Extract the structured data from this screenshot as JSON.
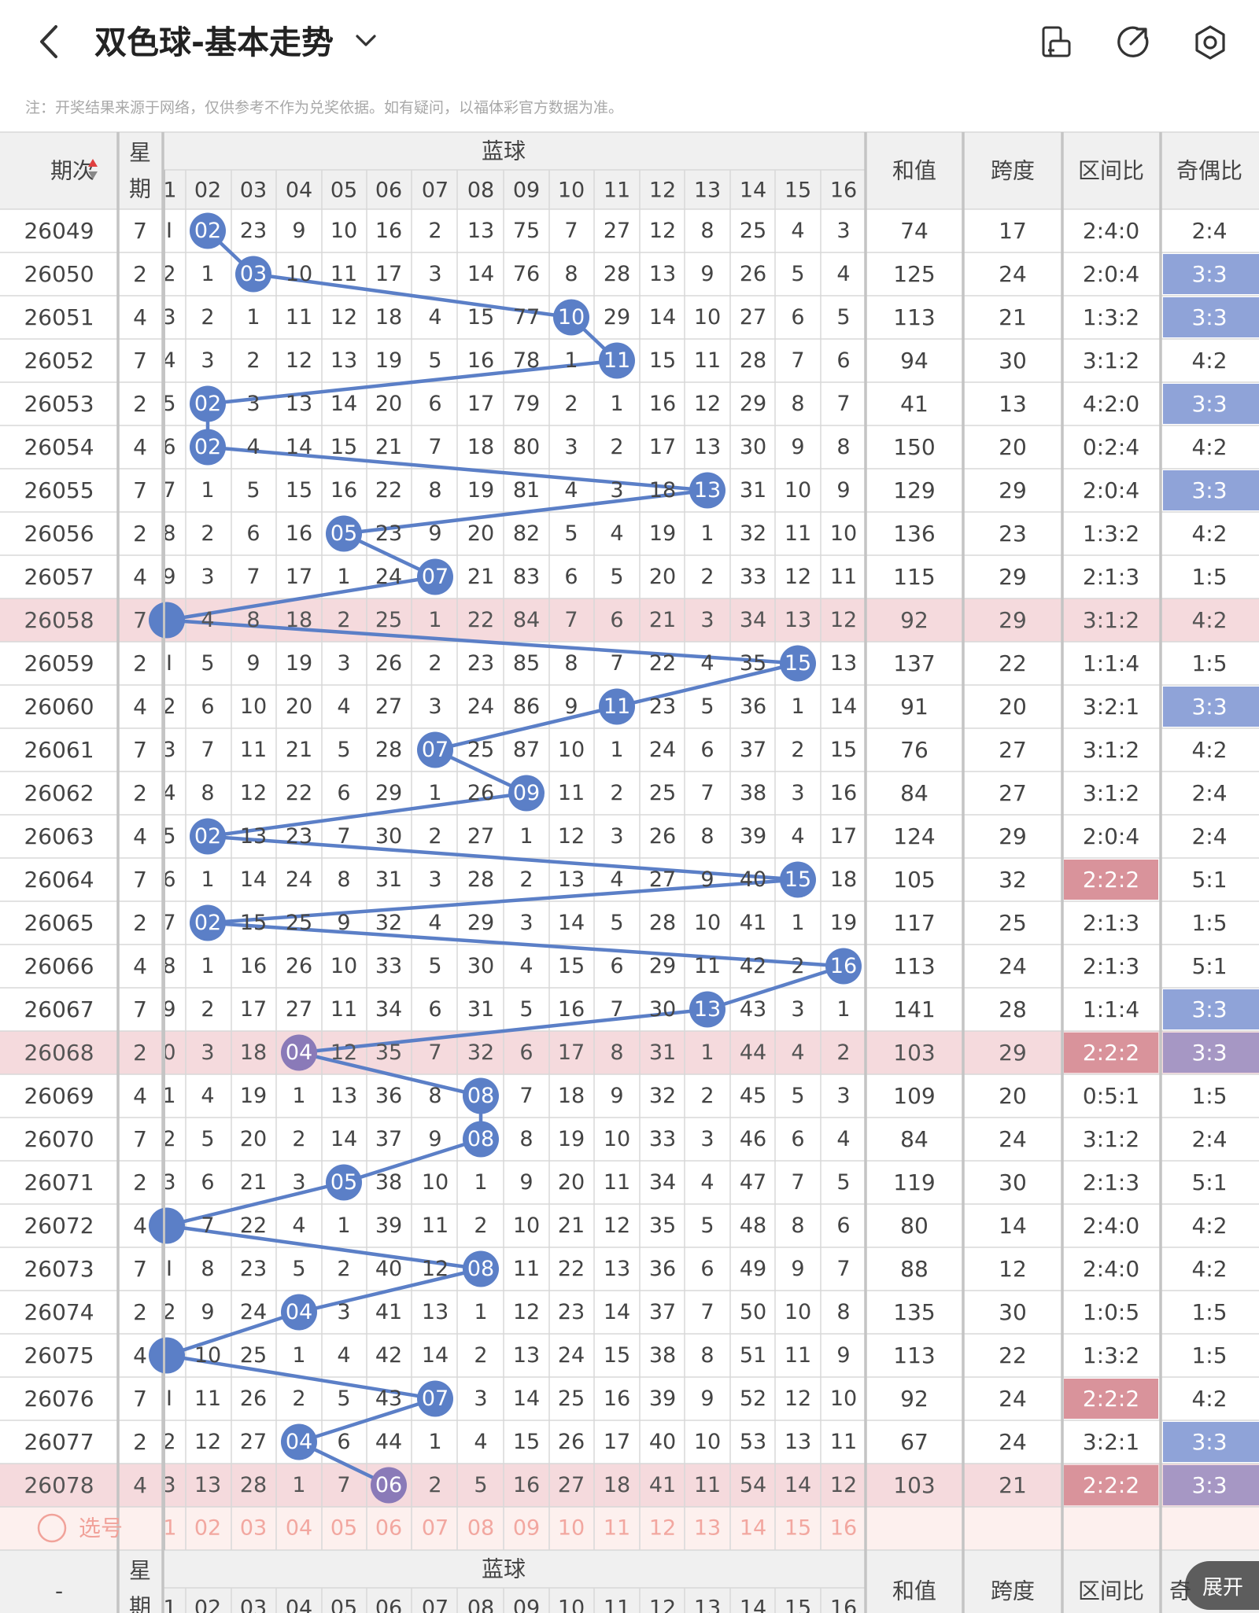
{
  "header": {
    "title": "双色球-基本走势",
    "icons": [
      "back-arrow-icon",
      "chevron-down-icon",
      "phone-rotate-icon",
      "share-icon",
      "settings-hex-icon"
    ]
  },
  "note": "注：开奖结果来源于网络，仅供参考不作为兑奖依据。如有疑问，以福体彩官方数据为准。",
  "colors": {
    "ball": "#5b7fc7",
    "ball_purple": "#8a7ab8",
    "highlight_row": "#f5dadd",
    "red_badge": "#d9939b",
    "blue_badge": "#8fa3d8",
    "purple_badge": "#a697c4",
    "select_bar": "#fdf0ee"
  },
  "table": {
    "headers": {
      "period": "期次",
      "weekday_top": "星",
      "weekday_bottom": "期",
      "blue_group": "蓝球",
      "sum": "和值",
      "span": "跨度",
      "zone_ratio": "区间比",
      "odd_even": "奇偶比"
    },
    "blue_numbers": [
      "1",
      "02",
      "03",
      "04",
      "05",
      "06",
      "07",
      "08",
      "09",
      "10",
      "11",
      "12",
      "13",
      "14",
      "15",
      "16"
    ],
    "rows": [
      {
        "period": "26049",
        "week": "7",
        "c1": "I",
        "cells": [
          "02",
          "23",
          "9",
          "10",
          "16",
          "2",
          "13",
          "75",
          "7",
          "27",
          "12",
          "8",
          "25",
          "4",
          "3"
        ],
        "ball": 2,
        "sum": "74",
        "span": "17",
        "zone": "2:4:0",
        "oe": "2:4"
      },
      {
        "period": "26050",
        "week": "2",
        "c1": "2",
        "cells": [
          "1",
          "03",
          "10",
          "11",
          "17",
          "3",
          "14",
          "76",
          "8",
          "28",
          "13",
          "9",
          "26",
          "5",
          "4"
        ],
        "ball": 3,
        "sum": "125",
        "span": "24",
        "zone": "2:0:4",
        "oe": "3:3",
        "oe_mark": "blue"
      },
      {
        "period": "26051",
        "week": "4",
        "c1": "3",
        "cells": [
          "2",
          "1",
          "11",
          "12",
          "18",
          "4",
          "15",
          "77",
          "10",
          "29",
          "14",
          "10",
          "27",
          "6",
          "5"
        ],
        "ball": 10,
        "sum": "113",
        "span": "21",
        "zone": "1:3:2",
        "oe": "3:3",
        "oe_mark": "blue"
      },
      {
        "period": "26052",
        "week": "7",
        "c1": "4",
        "cells": [
          "3",
          "2",
          "12",
          "13",
          "19",
          "5",
          "16",
          "78",
          "1",
          "11",
          "15",
          "11",
          "28",
          "7",
          "6"
        ],
        "ball": 11,
        "sum": "94",
        "span": "30",
        "zone": "3:1:2",
        "oe": "4:2"
      },
      {
        "period": "26053",
        "week": "2",
        "c1": "5",
        "cells": [
          "02",
          "3",
          "13",
          "14",
          "20",
          "6",
          "17",
          "79",
          "2",
          "1",
          "16",
          "12",
          "29",
          "8",
          "7"
        ],
        "ball": 2,
        "sum": "41",
        "span": "13",
        "zone": "4:2:0",
        "oe": "3:3",
        "oe_mark": "blue"
      },
      {
        "period": "26054",
        "week": "4",
        "c1": "6",
        "cells": [
          "02",
          "4",
          "14",
          "15",
          "21",
          "7",
          "18",
          "80",
          "3",
          "2",
          "17",
          "13",
          "30",
          "9",
          "8"
        ],
        "ball": 2,
        "sum": "150",
        "span": "20",
        "zone": "0:2:4",
        "oe": "4:2"
      },
      {
        "period": "26055",
        "week": "7",
        "c1": "7",
        "cells": [
          "1",
          "5",
          "15",
          "16",
          "22",
          "8",
          "19",
          "81",
          "4",
          "3",
          "18",
          "13",
          "31",
          "10",
          "9"
        ],
        "ball": 13,
        "sum": "129",
        "span": "29",
        "zone": "2:0:4",
        "oe": "3:3",
        "oe_mark": "blue"
      },
      {
        "period": "26056",
        "week": "2",
        "c1": "8",
        "cells": [
          "2",
          "6",
          "16",
          "05",
          "23",
          "9",
          "20",
          "82",
          "5",
          "4",
          "19",
          "1",
          "32",
          "11",
          "10"
        ],
        "ball": 5,
        "sum": "136",
        "span": "23",
        "zone": "1:3:2",
        "oe": "4:2"
      },
      {
        "period": "26057",
        "week": "4",
        "c1": "9",
        "cells": [
          "3",
          "7",
          "17",
          "1",
          "24",
          "07",
          "21",
          "83",
          "6",
          "5",
          "20",
          "2",
          "33",
          "12",
          "11"
        ],
        "ball": 7,
        "sum": "115",
        "span": "29",
        "zone": "2:1:3",
        "oe": "1:5"
      },
      {
        "period": "26058",
        "week": "7",
        "c1": "1",
        "cells": [
          "4",
          "8",
          "18",
          "2",
          "25",
          "1",
          "22",
          "84",
          "7",
          "6",
          "21",
          "3",
          "34",
          "13",
          "12"
        ],
        "ball": 1,
        "sum": "92",
        "span": "29",
        "zone": "3:1:2",
        "oe": "4:2",
        "hl": true
      },
      {
        "period": "26059",
        "week": "2",
        "c1": "I",
        "cells": [
          "5",
          "9",
          "19",
          "3",
          "26",
          "2",
          "23",
          "85",
          "8",
          "7",
          "22",
          "4",
          "35",
          "15",
          "13"
        ],
        "ball": 15,
        "sum": "137",
        "span": "22",
        "zone": "1:1:4",
        "oe": "1:5"
      },
      {
        "period": "26060",
        "week": "4",
        "c1": "2",
        "cells": [
          "6",
          "10",
          "20",
          "4",
          "27",
          "3",
          "24",
          "86",
          "9",
          "11",
          "23",
          "5",
          "36",
          "1",
          "14"
        ],
        "ball": 11,
        "sum": "91",
        "span": "20",
        "zone": "3:2:1",
        "oe": "3:3",
        "oe_mark": "blue"
      },
      {
        "period": "26061",
        "week": "7",
        "c1": "3",
        "cells": [
          "7",
          "11",
          "21",
          "5",
          "28",
          "07",
          "25",
          "87",
          "10",
          "1",
          "24",
          "6",
          "37",
          "2",
          "15"
        ],
        "ball": 7,
        "sum": "76",
        "span": "27",
        "zone": "3:1:2",
        "oe": "4:2"
      },
      {
        "period": "26062",
        "week": "2",
        "c1": "4",
        "cells": [
          "8",
          "12",
          "22",
          "6",
          "29",
          "1",
          "26",
          "09",
          "11",
          "2",
          "25",
          "7",
          "38",
          "3",
          "16"
        ],
        "ball": 9,
        "sum": "84",
        "span": "27",
        "zone": "3:1:2",
        "oe": "2:4"
      },
      {
        "period": "26063",
        "week": "4",
        "c1": "5",
        "cells": [
          "02",
          "13",
          "23",
          "7",
          "30",
          "2",
          "27",
          "1",
          "12",
          "3",
          "26",
          "8",
          "39",
          "4",
          "17"
        ],
        "ball": 2,
        "sum": "124",
        "span": "29",
        "zone": "2:0:4",
        "oe": "2:4"
      },
      {
        "period": "26064",
        "week": "7",
        "c1": "6",
        "cells": [
          "1",
          "14",
          "24",
          "8",
          "31",
          "3",
          "28",
          "2",
          "13",
          "4",
          "27",
          "9",
          "40",
          "15",
          "18"
        ],
        "ball": 15,
        "sum": "105",
        "span": "32",
        "zone": "2:2:2",
        "oe": "5:1",
        "zone_mark": "red"
      },
      {
        "period": "26065",
        "week": "2",
        "c1": "7",
        "cells": [
          "02",
          "15",
          "25",
          "9",
          "32",
          "4",
          "29",
          "3",
          "14",
          "5",
          "28",
          "10",
          "41",
          "1",
          "19"
        ],
        "ball": 2,
        "sum": "117",
        "span": "25",
        "zone": "2:1:3",
        "oe": "1:5"
      },
      {
        "period": "26066",
        "week": "4",
        "c1": "8",
        "cells": [
          "1",
          "16",
          "26",
          "10",
          "33",
          "5",
          "30",
          "4",
          "15",
          "6",
          "29",
          "11",
          "42",
          "2",
          "16"
        ],
        "ball": 16,
        "sum": "113",
        "span": "24",
        "zone": "2:1:3",
        "oe": "5:1"
      },
      {
        "period": "26067",
        "week": "7",
        "c1": "9",
        "cells": [
          "2",
          "17",
          "27",
          "11",
          "34",
          "6",
          "31",
          "5",
          "16",
          "7",
          "30",
          "13",
          "43",
          "3",
          "1"
        ],
        "ball": 13,
        "sum": "141",
        "span": "28",
        "zone": "1:1:4",
        "oe": "3:3",
        "oe_mark": "blue"
      },
      {
        "period": "26068",
        "week": "2",
        "c1": "0",
        "cells": [
          "3",
          "18",
          "04",
          "12",
          "35",
          "7",
          "32",
          "6",
          "17",
          "8",
          "31",
          "1",
          "44",
          "4",
          "2"
        ],
        "ball": 4,
        "sum": "103",
        "span": "29",
        "zone": "2:2:2",
        "oe": "3:3",
        "zone_mark": "red",
        "oe_mark": "purple",
        "hl": true
      },
      {
        "period": "26069",
        "week": "4",
        "c1": "1",
        "cells": [
          "4",
          "19",
          "1",
          "13",
          "36",
          "8",
          "08",
          "7",
          "18",
          "9",
          "32",
          "2",
          "45",
          "5",
          "3"
        ],
        "ball": 8,
        "sum": "109",
        "span": "20",
        "zone": "0:5:1",
        "oe": "1:5"
      },
      {
        "period": "26070",
        "week": "7",
        "c1": "2",
        "cells": [
          "5",
          "20",
          "2",
          "14",
          "37",
          "9",
          "08",
          "8",
          "19",
          "10",
          "33",
          "3",
          "46",
          "6",
          "4"
        ],
        "ball": 8,
        "sum": "84",
        "span": "24",
        "zone": "3:1:2",
        "oe": "2:4"
      },
      {
        "period": "26071",
        "week": "2",
        "c1": "3",
        "cells": [
          "6",
          "21",
          "3",
          "05",
          "38",
          "10",
          "1",
          "9",
          "20",
          "11",
          "34",
          "4",
          "47",
          "7",
          "5"
        ],
        "ball": 5,
        "sum": "119",
        "span": "30",
        "zone": "2:1:3",
        "oe": "5:1"
      },
      {
        "period": "26072",
        "week": "4",
        "c1": "1",
        "cells": [
          "7",
          "22",
          "4",
          "1",
          "39",
          "11",
          "2",
          "10",
          "21",
          "12",
          "35",
          "5",
          "48",
          "8",
          "6"
        ],
        "ball": 1,
        "sum": "80",
        "span": "14",
        "zone": "2:4:0",
        "oe": "4:2"
      },
      {
        "period": "26073",
        "week": "7",
        "c1": "I",
        "cells": [
          "8",
          "23",
          "5",
          "2",
          "40",
          "12",
          "08",
          "11",
          "22",
          "13",
          "36",
          "6",
          "49",
          "9",
          "7"
        ],
        "ball": 8,
        "sum": "88",
        "span": "12",
        "zone": "2:4:0",
        "oe": "4:2"
      },
      {
        "period": "26074",
        "week": "2",
        "c1": "2",
        "cells": [
          "9",
          "24",
          "04",
          "3",
          "41",
          "13",
          "1",
          "12",
          "23",
          "14",
          "37",
          "7",
          "50",
          "10",
          "8"
        ],
        "ball": 4,
        "sum": "135",
        "span": "30",
        "zone": "1:0:5",
        "oe": "1:5"
      },
      {
        "period": "26075",
        "week": "4",
        "c1": "1",
        "cells": [
          "10",
          "25",
          "1",
          "4",
          "42",
          "14",
          "2",
          "13",
          "24",
          "15",
          "38",
          "8",
          "51",
          "11",
          "9"
        ],
        "ball": 1,
        "sum": "113",
        "span": "22",
        "zone": "1:3:2",
        "oe": "1:5"
      },
      {
        "period": "26076",
        "week": "7",
        "c1": "I",
        "cells": [
          "11",
          "26",
          "2",
          "5",
          "43",
          "07",
          "3",
          "14",
          "25",
          "16",
          "39",
          "9",
          "52",
          "12",
          "10"
        ],
        "ball": 7,
        "sum": "92",
        "span": "24",
        "zone": "2:2:2",
        "oe": "4:2",
        "zone_mark": "red"
      },
      {
        "period": "26077",
        "week": "2",
        "c1": "2",
        "cells": [
          "12",
          "27",
          "04",
          "6",
          "44",
          "1",
          "4",
          "15",
          "26",
          "17",
          "40",
          "10",
          "53",
          "13",
          "11"
        ],
        "ball": 4,
        "sum": "67",
        "span": "24",
        "zone": "3:2:1",
        "oe": "3:3",
        "oe_mark": "blue"
      },
      {
        "period": "26078",
        "week": "4",
        "c1": "3",
        "cells": [
          "13",
          "28",
          "1",
          "7",
          "06",
          "2",
          "5",
          "16",
          "27",
          "18",
          "41",
          "11",
          "54",
          "14",
          "12"
        ],
        "ball": 6,
        "sum": "103",
        "span": "21",
        "zone": "2:2:2",
        "oe": "3:3",
        "zone_mark": "red",
        "oe_mark": "purple",
        "hl": true,
        "purple_ball": true
      }
    ],
    "select_label": "选号",
    "footer_period": "-",
    "footer_oe_partial": "奇",
    "expand_label": "展开"
  }
}
